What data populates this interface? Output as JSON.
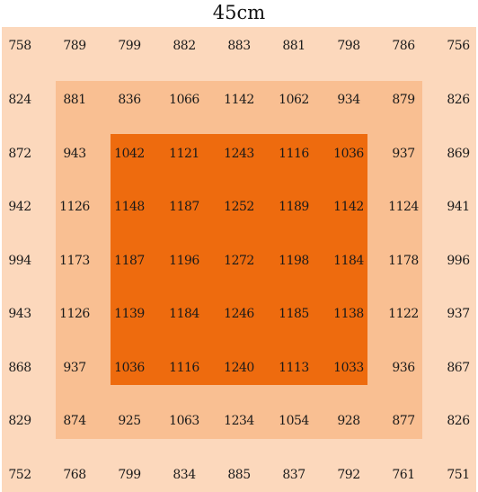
{
  "title": "45cm",
  "colors": {
    "outer": "#fcd8bc",
    "middle": "#f9bf92",
    "inner": "#ee6b0e",
    "text": "#1a1a1a"
  },
  "grid": [
    [
      "758",
      "789",
      "799",
      "882",
      "883",
      "881",
      "798",
      "786",
      "756"
    ],
    [
      "824",
      "881",
      "836",
      "1066",
      "1142",
      "1062",
      "934",
      "879",
      "826"
    ],
    [
      "872",
      "943",
      "1042",
      "1121",
      "1243",
      "1116",
      "1036",
      "937",
      "869"
    ],
    [
      "942",
      "1126",
      "1148",
      "1187",
      "1252",
      "1189",
      "1142",
      "1124",
      "941"
    ],
    [
      "994",
      "1173",
      "1187",
      "1196",
      "1272",
      "1198",
      "1184",
      "1178",
      "996"
    ],
    [
      "943",
      "1126",
      "1139",
      "1184",
      "1246",
      "1185",
      "1138",
      "1122",
      "937"
    ],
    [
      "868",
      "937",
      "1036",
      "1116",
      "1240",
      "1113",
      "1033",
      "936",
      "867"
    ],
    [
      "829",
      "874",
      "925",
      "1063",
      "1234",
      "1054",
      "928",
      "877",
      "826"
    ],
    [
      "752",
      "768",
      "799",
      "834",
      "885",
      "837",
      "792",
      "761",
      "751"
    ]
  ]
}
